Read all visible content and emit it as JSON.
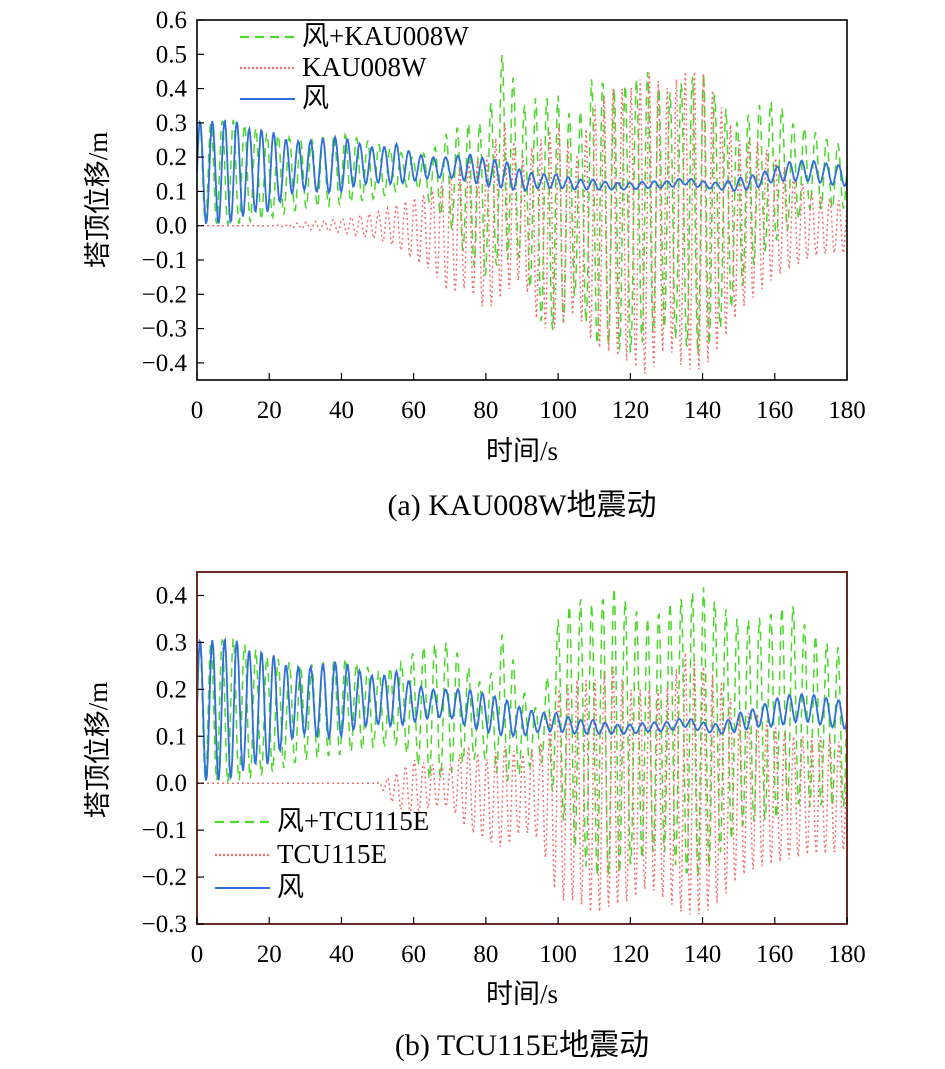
{
  "chart_data": [
    {
      "type": "line",
      "caption": "(a) KAU008W地震动",
      "xlabel": "时间/s",
      "ylabel": "塔顶位移/m",
      "xlim": [
        0,
        180
      ],
      "ylim": [
        -0.45,
        0.6
      ],
      "x_ticks": [
        "0",
        "20",
        "40",
        "60",
        "80",
        "100",
        "120",
        "140",
        "160",
        "180"
      ],
      "y_ticks": [
        "0.6",
        "0.5",
        "0.4",
        "0.3",
        "0.2",
        "0.1",
        "0.0",
        "−0.1",
        "−0.2",
        "−0.3",
        "−0.4"
      ],
      "legend_position": "top-left",
      "series": [
        {
          "name": "风+KAU008W",
          "color": "#4cd82a",
          "style": "dashed",
          "x": [
            0,
            10,
            20,
            30,
            40,
            50,
            60,
            65,
            70,
            75,
            80,
            85,
            90,
            95,
            100,
            105,
            110,
            115,
            120,
            125,
            130,
            135,
            140,
            145,
            150,
            155,
            160,
            165,
            170,
            175,
            180
          ],
          "upper": [
            0.3,
            0.31,
            0.27,
            0.25,
            0.27,
            0.24,
            0.2,
            0.22,
            0.28,
            0.3,
            0.3,
            0.52,
            0.35,
            0.38,
            0.38,
            0.3,
            0.45,
            0.4,
            0.42,
            0.45,
            0.38,
            0.43,
            0.45,
            0.36,
            0.3,
            0.35,
            0.37,
            0.3,
            0.28,
            0.25,
            0.23
          ],
          "lower": [
            0.01,
            0.0,
            0.02,
            0.05,
            0.06,
            0.08,
            0.12,
            0.06,
            0.0,
            -0.1,
            -0.15,
            -0.1,
            -0.1,
            -0.28,
            -0.32,
            -0.2,
            -0.35,
            -0.35,
            -0.38,
            -0.32,
            -0.3,
            -0.36,
            -0.38,
            -0.3,
            -0.2,
            -0.1,
            -0.05,
            0.0,
            0.05,
            0.05,
            0.05
          ]
        },
        {
          "name": "KAU008W",
          "color": "#f07070",
          "style": "dotted",
          "x": [
            0,
            10,
            20,
            30,
            40,
            50,
            55,
            60,
            65,
            70,
            75,
            80,
            85,
            90,
            95,
            100,
            105,
            110,
            115,
            120,
            125,
            130,
            135,
            140,
            145,
            150,
            155,
            160,
            165,
            170,
            175,
            180
          ],
          "upper": [
            0.0,
            0.0,
            0.0,
            0.01,
            0.02,
            0.04,
            0.06,
            0.08,
            0.1,
            0.15,
            0.2,
            0.2,
            0.3,
            0.2,
            0.25,
            0.3,
            0.2,
            0.35,
            0.4,
            0.4,
            0.45,
            0.4,
            0.45,
            0.45,
            0.35,
            0.25,
            0.25,
            0.2,
            0.15,
            0.1,
            0.08,
            0.07
          ],
          "lower": [
            0.0,
            0.0,
            0.0,
            -0.01,
            -0.02,
            -0.04,
            -0.06,
            -0.1,
            -0.13,
            -0.2,
            -0.18,
            -0.25,
            -0.2,
            -0.15,
            -0.3,
            -0.3,
            -0.25,
            -0.35,
            -0.37,
            -0.4,
            -0.44,
            -0.35,
            -0.42,
            -0.42,
            -0.35,
            -0.25,
            -0.2,
            -0.15,
            -0.12,
            -0.09,
            -0.08,
            -0.08
          ]
        },
        {
          "name": "风",
          "color": "#2e6fd9",
          "style": "solid",
          "x": [
            0,
            5,
            10,
            15,
            20,
            25,
            30,
            35,
            40,
            45,
            50,
            55,
            60,
            65,
            70,
            75,
            80,
            85,
            90,
            95,
            100,
            105,
            110,
            115,
            120,
            125,
            130,
            135,
            140,
            145,
            150,
            155,
            160,
            165,
            170,
            175,
            180
          ],
          "center": [
            0.155,
            0.155,
            0.16,
            0.16,
            0.16,
            0.17,
            0.175,
            0.175,
            0.18,
            0.18,
            0.175,
            0.18,
            0.17,
            0.17,
            0.17,
            0.17,
            0.155,
            0.15,
            0.13,
            0.13,
            0.13,
            0.12,
            0.12,
            0.115,
            0.115,
            0.12,
            0.12,
            0.13,
            0.12,
            0.115,
            0.12,
            0.13,
            0.15,
            0.16,
            0.16,
            0.15,
            0.145
          ],
          "amplitude": [
            0.15,
            0.15,
            0.15,
            0.12,
            0.12,
            0.08,
            0.07,
            0.08,
            0.08,
            0.06,
            0.05,
            0.06,
            0.04,
            0.03,
            0.03,
            0.04,
            0.04,
            0.04,
            0.03,
            0.02,
            0.02,
            0.015,
            0.015,
            0.01,
            0.01,
            0.01,
            0.01,
            0.01,
            0.01,
            0.01,
            0.02,
            0.02,
            0.02,
            0.03,
            0.03,
            0.03,
            0.03
          ]
        }
      ]
    },
    {
      "type": "line",
      "caption": "(b) TCU115E地震动",
      "xlabel": "时间/s",
      "ylabel": "塔顶位移/m",
      "xlim": [
        0,
        180
      ],
      "ylim": [
        -0.3,
        0.45
      ],
      "x_ticks": [
        "0",
        "20",
        "40",
        "60",
        "80",
        "100",
        "120",
        "140",
        "160",
        "180"
      ],
      "y_ticks": [
        "0.4",
        "0.3",
        "0.2",
        "0.1",
        "0.0",
        "−0.1",
        "−0.2",
        "−0.3"
      ],
      "legend_position": "bottom-left",
      "series": [
        {
          "name": "风+TCU115E",
          "color": "#4cd82a",
          "style": "dashed",
          "x": [
            0,
            10,
            20,
            30,
            40,
            50,
            55,
            60,
            65,
            70,
            75,
            80,
            85,
            90,
            95,
            100,
            105,
            110,
            115,
            120,
            125,
            130,
            135,
            140,
            145,
            150,
            155,
            160,
            165,
            170,
            175,
            180
          ],
          "upper": [
            0.3,
            0.31,
            0.27,
            0.25,
            0.27,
            0.24,
            0.25,
            0.28,
            0.3,
            0.3,
            0.25,
            0.2,
            0.33,
            0.2,
            0.15,
            0.35,
            0.4,
            0.38,
            0.42,
            0.38,
            0.35,
            0.38,
            0.4,
            0.42,
            0.38,
            0.35,
            0.35,
            0.37,
            0.38,
            0.32,
            0.3,
            0.28
          ],
          "lower": [
            0.01,
            0.0,
            0.02,
            0.05,
            0.06,
            0.08,
            0.08,
            0.05,
            0.0,
            0.02,
            0.05,
            0.05,
            0.0,
            0.02,
            0.05,
            -0.05,
            -0.15,
            -0.2,
            -0.2,
            -0.18,
            -0.15,
            -0.15,
            -0.2,
            -0.2,
            -0.15,
            -0.1,
            -0.08,
            -0.08,
            -0.05,
            -0.05,
            -0.05,
            -0.05
          ]
        },
        {
          "name": "TCU115E",
          "color": "#f07070",
          "style": "dotted",
          "x": [
            0,
            10,
            20,
            30,
            40,
            50,
            55,
            60,
            65,
            70,
            75,
            80,
            85,
            90,
            95,
            100,
            105,
            110,
            115,
            120,
            125,
            130,
            135,
            140,
            145,
            150,
            155,
            160,
            165,
            170,
            175,
            180
          ],
          "upper": [
            0.0,
            0.0,
            0.0,
            0.0,
            0.0,
            0.0,
            0.02,
            0.05,
            0.04,
            0.04,
            0.08,
            0.05,
            0.08,
            0.06,
            0.08,
            0.2,
            0.22,
            0.22,
            0.25,
            0.2,
            0.2,
            0.2,
            0.28,
            0.25,
            0.22,
            0.15,
            0.15,
            0.12,
            0.1,
            0.1,
            0.1,
            0.08
          ],
          "lower": [
            0.0,
            0.0,
            0.0,
            0.0,
            0.0,
            0.0,
            -0.05,
            -0.07,
            -0.05,
            -0.05,
            -0.1,
            -0.12,
            -0.14,
            -0.1,
            -0.12,
            -0.25,
            -0.25,
            -0.28,
            -0.26,
            -0.25,
            -0.22,
            -0.25,
            -0.28,
            -0.28,
            -0.25,
            -0.2,
            -0.18,
            -0.17,
            -0.16,
            -0.15,
            -0.15,
            -0.14
          ]
        },
        {
          "name": "风",
          "color": "#2e6fd9",
          "style": "solid",
          "x": [
            0,
            5,
            10,
            15,
            20,
            25,
            30,
            35,
            40,
            45,
            50,
            55,
            60,
            65,
            70,
            75,
            80,
            85,
            90,
            95,
            100,
            105,
            110,
            115,
            120,
            125,
            130,
            135,
            140,
            145,
            150,
            155,
            160,
            165,
            170,
            175,
            180
          ],
          "center": [
            0.155,
            0.155,
            0.16,
            0.16,
            0.16,
            0.17,
            0.175,
            0.175,
            0.18,
            0.18,
            0.175,
            0.18,
            0.17,
            0.17,
            0.17,
            0.16,
            0.15,
            0.14,
            0.13,
            0.13,
            0.13,
            0.12,
            0.12,
            0.115,
            0.115,
            0.12,
            0.12,
            0.13,
            0.12,
            0.115,
            0.13,
            0.14,
            0.15,
            0.16,
            0.16,
            0.15,
            0.145
          ],
          "amplitude": [
            0.15,
            0.15,
            0.15,
            0.12,
            0.12,
            0.08,
            0.07,
            0.08,
            0.08,
            0.06,
            0.05,
            0.06,
            0.04,
            0.03,
            0.03,
            0.04,
            0.04,
            0.04,
            0.03,
            0.02,
            0.02,
            0.015,
            0.015,
            0.01,
            0.01,
            0.01,
            0.01,
            0.01,
            0.01,
            0.01,
            0.02,
            0.02,
            0.03,
            0.03,
            0.03,
            0.03,
            0.03
          ]
        }
      ]
    }
  ]
}
